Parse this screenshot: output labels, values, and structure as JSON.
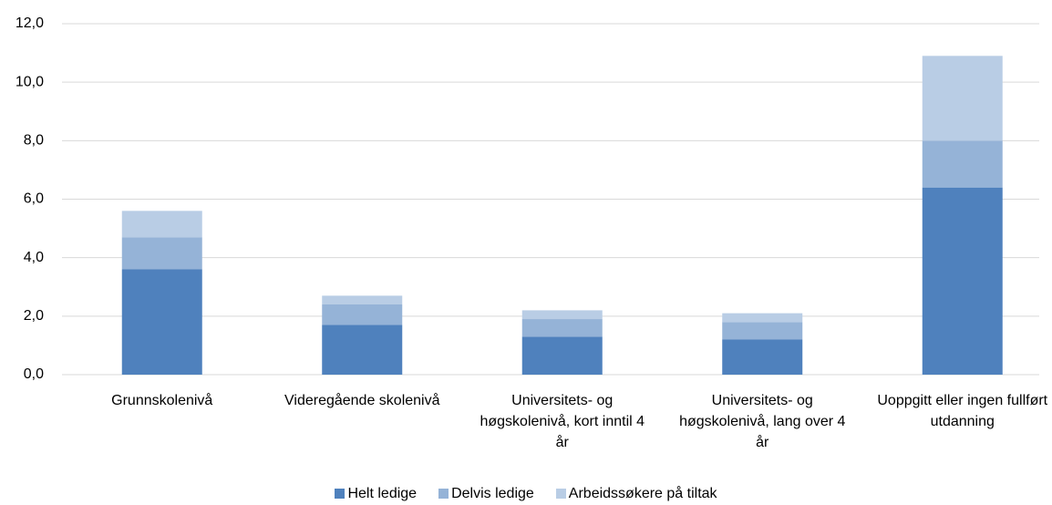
{
  "chart_data": {
    "type": "stacked_bar",
    "categories": [
      "Grunnskolenivå",
      "Videregående skolenivå",
      "Universitets- og høgskolenivå, kort inntil 4 år",
      "Universitets- og høgskolenivå, lang over 4 år",
      "Uoppgitt eller ingen fullført utdanning"
    ],
    "series": [
      {
        "name": "Helt ledige",
        "color": "#4f81bd",
        "values": [
          3.6,
          1.7,
          1.3,
          1.2,
          6.4
        ]
      },
      {
        "name": "Delvis ledige",
        "color": "#95b3d7",
        "values": [
          1.1,
          0.7,
          0.6,
          0.6,
          1.6
        ]
      },
      {
        "name": "Arbeidssøkere på tiltak",
        "color": "#b9cde5",
        "values": [
          0.9,
          0.3,
          0.3,
          0.3,
          2.9
        ]
      }
    ],
    "ylim": [
      0,
      12
    ],
    "yticks": [
      {
        "value": 0,
        "label": "0,0"
      },
      {
        "value": 2,
        "label": "2,0"
      },
      {
        "value": 4,
        "label": "4,0"
      },
      {
        "value": 6,
        "label": "6,0"
      },
      {
        "value": 8,
        "label": "8,0"
      },
      {
        "value": 10,
        "label": "10,0"
      },
      {
        "value": 12,
        "label": "12,0"
      }
    ],
    "grid": true,
    "legend": "bottom"
  }
}
